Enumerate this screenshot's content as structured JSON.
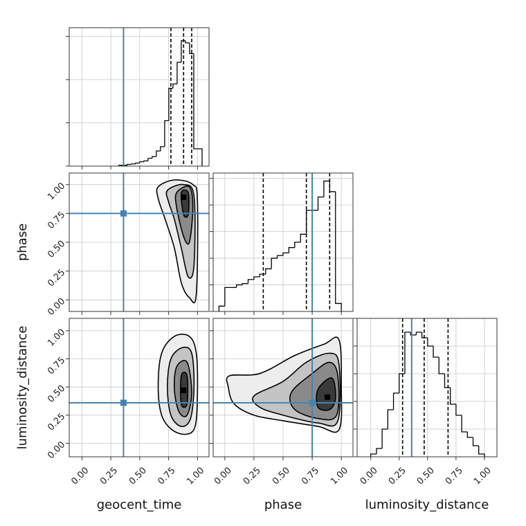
{
  "chart_data": {
    "type": "corner",
    "parameters": [
      "geocent_time",
      "phase",
      "luminosity_distance"
    ],
    "truths": [
      0.36,
      0.75,
      0.36
    ],
    "truth_color": "#4682b4",
    "line_color": "#000000",
    "grid": true,
    "contour_colors": [
      "#ededed",
      "#c4c4c4",
      "#8a8a8a",
      "#3a3a3a"
    ],
    "axes": [
      {
        "lim": [
          -0.11,
          1.1
        ],
        "ticks": [
          {
            "value": 0,
            "label": "0.00"
          },
          {
            "value": 0.25,
            "label": "0.25"
          },
          {
            "value": 0.5,
            "label": "0.50"
          },
          {
            "value": 0.75,
            "label": "0.75"
          },
          {
            "value": 1,
            "label": "1.00"
          }
        ]
      },
      {
        "lim": [
          -0.1,
          1.1
        ],
        "ticks": [
          {
            "value": 0,
            "label": "0.00"
          },
          {
            "value": 0.25,
            "label": "0.25"
          },
          {
            "value": 0.5,
            "label": "0.50"
          },
          {
            "value": 0.75,
            "label": "0.75"
          },
          {
            "value": 1,
            "label": "1.00"
          }
        ]
      },
      {
        "lim": [
          -0.12,
          1.11
        ],
        "ticks": [
          {
            "value": 0,
            "label": "0.00"
          },
          {
            "value": 0.25,
            "label": "0.25"
          },
          {
            "value": 0.5,
            "label": "0.50"
          },
          {
            "value": 0.75,
            "label": "0.75"
          },
          {
            "value": 1,
            "label": "1.00"
          }
        ]
      }
    ],
    "histograms": [
      {
        "bins": [
          0.32,
          0.356,
          0.392,
          0.428,
          0.464,
          0.5,
          0.536,
          0.572,
          0.608,
          0.644,
          0.68,
          0.716,
          0.752,
          0.788,
          0.824,
          0.86,
          0.896,
          0.932,
          0.968,
          1.004,
          1.04
        ],
        "counts": [
          0.02,
          0.02,
          0.04,
          0.05,
          0.07,
          0.1,
          0.12,
          0.18,
          0.22,
          0.35,
          0.45,
          1.05,
          1.8,
          1.9,
          2.4,
          2.9,
          2.85,
          2.6,
          0.4,
          0.4
        ],
        "quantiles": [
          0.77,
          0.88,
          0.95
        ],
        "ylim": [
          0,
          3.2
        ],
        "yticks": [
          0,
          1,
          2,
          3
        ]
      },
      {
        "bins": [
          -0.05,
          0,
          0.05,
          0.1,
          0.15,
          0.2,
          0.25,
          0.3,
          0.35,
          0.4,
          0.45,
          0.5,
          0.55,
          0.6,
          0.65,
          0.7,
          0.75,
          0.8,
          0.85,
          0.9,
          0.95,
          1.0
        ],
        "counts": [
          0.2,
          0.9,
          0.9,
          1.0,
          1.05,
          1.2,
          1.3,
          1.4,
          1.6,
          2.0,
          2.1,
          2.2,
          2.4,
          2.6,
          2.9,
          3.8,
          3.8,
          4.3,
          4.9,
          4.5,
          0.3
        ],
        "quantiles": [
          0.33,
          0.7,
          0.9
        ],
        "ylim": [
          0,
          5.2
        ],
        "yticks": [
          0,
          1,
          2,
          3,
          4,
          5
        ]
      },
      {
        "bins": [
          0,
          0.05,
          0.1,
          0.15,
          0.2,
          0.25,
          0.3,
          0.35,
          0.4,
          0.45,
          0.5,
          0.55,
          0.6,
          0.65,
          0.7,
          0.75,
          0.8,
          0.85,
          0.9,
          0.95,
          1.0
        ],
        "counts": [
          0.1,
          0.3,
          1.0,
          1.7,
          2.3,
          3.0,
          4.5,
          4.4,
          4.5,
          4.3,
          4.0,
          3.6,
          3.0,
          2.5,
          1.9,
          1.5,
          0.9,
          0.7,
          0.4,
          0.1
        ],
        "quantiles": [
          0.28,
          0.47,
          0.68
        ],
        "ylim": [
          0,
          5.0
        ],
        "yticks": [
          0,
          1,
          2,
          3,
          4,
          5
        ]
      }
    ],
    "panels": [
      {
        "x": 0,
        "y": 1,
        "peak": {
          "x": 0.88,
          "y": 0.89
        },
        "contours": [
          {
            "x": [
              0.66,
              0.8,
              0.96,
              1.0,
              0.99,
              0.93,
              0.86,
              0.8,
              0.72,
              0.66
            ],
            "y": [
              0.98,
              1.04,
              1.0,
              0.85,
              0.05,
              0.02,
              0.15,
              0.45,
              0.7,
              0.88
            ]
          },
          {
            "x": [
              0.74,
              0.88,
              0.97,
              0.97,
              0.92,
              0.86,
              0.8,
              0.75
            ],
            "y": [
              0.95,
              1.0,
              0.9,
              0.3,
              0.2,
              0.45,
              0.7,
              0.85
            ]
          },
          {
            "x": [
              0.82,
              0.93,
              0.96,
              0.93,
              0.88,
              0.82
            ],
            "y": [
              0.93,
              0.98,
              0.8,
              0.5,
              0.55,
              0.8
            ]
          },
          {
            "x": [
              0.86,
              0.92,
              0.92,
              0.88
            ],
            "y": [
              0.93,
              0.93,
              0.74,
              0.74
            ]
          }
        ]
      },
      {
        "x": 0,
        "y": 2,
        "peak": {
          "x": 0.88,
          "y": 0.47
        },
        "contours": [
          {
            "x": [
              0.69,
              0.8,
              0.93,
              0.99,
              1.0,
              0.98,
              0.9,
              0.78,
              0.69,
              0.66
            ],
            "y": [
              0.8,
              0.95,
              0.95,
              0.8,
              0.45,
              0.15,
              0.08,
              0.12,
              0.25,
              0.5
            ]
          },
          {
            "x": [
              0.77,
              0.87,
              0.95,
              0.97,
              0.94,
              0.86,
              0.77,
              0.74
            ],
            "y": [
              0.75,
              0.85,
              0.8,
              0.5,
              0.22,
              0.15,
              0.25,
              0.5
            ]
          },
          {
            "x": [
              0.82,
              0.91,
              0.95,
              0.91,
              0.84,
              0.8
            ],
            "y": [
              0.68,
              0.72,
              0.45,
              0.25,
              0.28,
              0.48
            ]
          },
          {
            "x": [
              0.86,
              0.91,
              0.91,
              0.86
            ],
            "y": [
              0.6,
              0.6,
              0.35,
              0.35
            ]
          }
        ]
      },
      {
        "x": 1,
        "y": 2,
        "peak": {
          "x": 0.88,
          "y": 0.41
        },
        "contours": [
          {
            "x": [
              0.04,
              0.3,
              0.6,
              0.85,
              0.98,
              1.0,
              0.98,
              0.8,
              0.5,
              0.25,
              0.08,
              0.03
            ],
            "y": [
              0.6,
              0.62,
              0.78,
              0.88,
              0.92,
              0.5,
              0.12,
              0.15,
              0.2,
              0.25,
              0.35,
              0.5
            ]
          },
          {
            "x": [
              0.25,
              0.5,
              0.7,
              0.9,
              0.98,
              0.97,
              0.8,
              0.5,
              0.3
            ],
            "y": [
              0.42,
              0.55,
              0.72,
              0.8,
              0.7,
              0.2,
              0.18,
              0.25,
              0.32
            ]
          },
          {
            "x": [
              0.57,
              0.75,
              0.9,
              0.97,
              0.96,
              0.8,
              0.6
            ],
            "y": [
              0.45,
              0.62,
              0.72,
              0.6,
              0.25,
              0.22,
              0.3
            ]
          },
          {
            "x": [
              0.8,
              0.92,
              0.95,
              0.9,
              0.8
            ],
            "y": [
              0.48,
              0.58,
              0.4,
              0.3,
              0.32
            ]
          }
        ]
      }
    ]
  }
}
